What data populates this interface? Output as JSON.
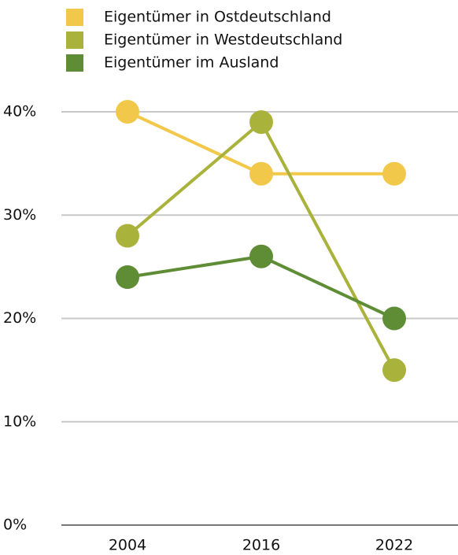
{
  "chart_data": {
    "type": "line",
    "categories": [
      "2004",
      "2016",
      "2022"
    ],
    "series": [
      {
        "name": "Eigentümer in Ostdeutschland",
        "color": "#f2c84b",
        "values": [
          40,
          34,
          34
        ]
      },
      {
        "name": "Eigentümer in Westdeutschland",
        "color": "#a9b33b",
        "values": [
          28,
          39,
          15
        ]
      },
      {
        "name": "Eigentümer im Ausland",
        "color": "#5f8d36",
        "values": [
          24,
          26,
          20
        ]
      }
    ],
    "ylim": [
      0,
      40
    ],
    "yticks": [
      {
        "value": 0,
        "label": "0%"
      },
      {
        "value": 10,
        "label": "10%"
      },
      {
        "value": 20,
        "label": "20%"
      },
      {
        "value": 30,
        "label": "30%"
      },
      {
        "value": 40,
        "label": "40%"
      }
    ],
    "grid": true,
    "legend": "top"
  }
}
